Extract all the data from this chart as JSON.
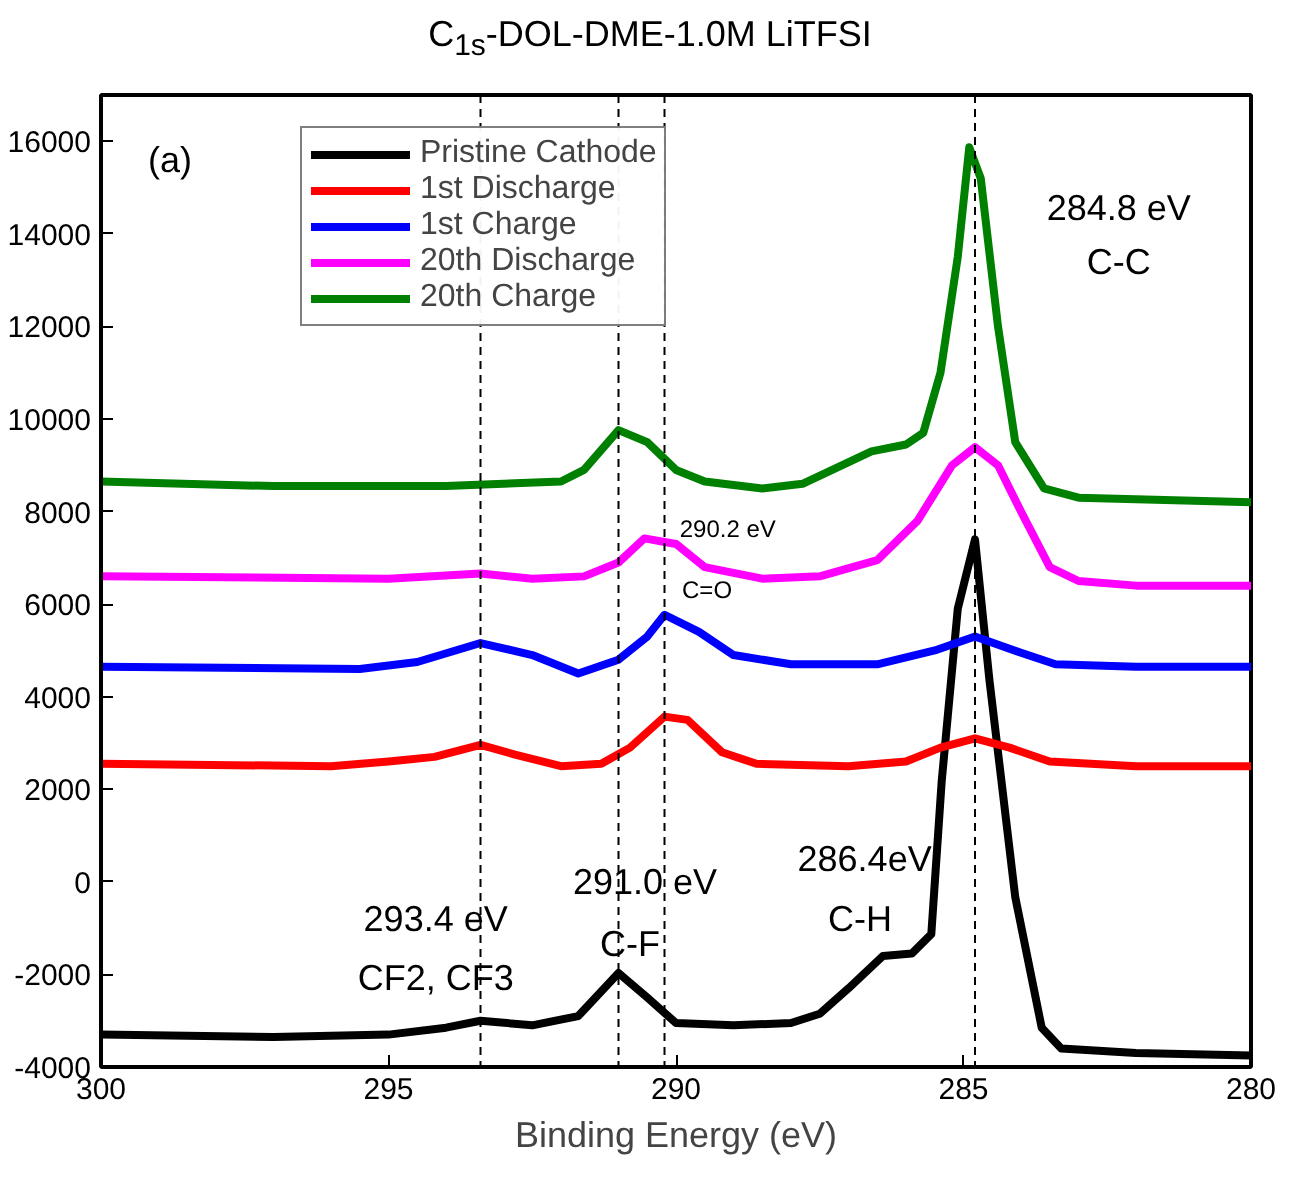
{
  "chart_data": {
    "type": "line",
    "title": "C$_{1s}$-DOL-DME-1.0M LiTFSI",
    "xlabel": "Binding Energy (eV)",
    "xlim": [
      300,
      280
    ],
    "xticks": [
      300,
      295,
      290,
      285,
      280
    ],
    "ylim": [
      -4000,
      17000
    ],
    "yticks": [
      -4000,
      -2000,
      0,
      2000,
      4000,
      6000,
      8000,
      10000,
      12000,
      14000,
      16000
    ],
    "grid": false,
    "legend": "top",
    "marker": "none",
    "line_style": "solid",
    "series": [
      {
        "name": "Pristine Cathode",
        "color": "#000000",
        "x": [
          300,
          297,
          295,
          294,
          293.4,
          292.5,
          291.7,
          291.0,
          290.5,
          290,
          289,
          288,
          287.5,
          287,
          286.4,
          285.9,
          285.56,
          285.38,
          285.1,
          284.8,
          284.55,
          284.1,
          283.64,
          283.3,
          282,
          280
        ],
        "values": [
          -3300,
          -3350,
          -3300,
          -3150,
          -3000,
          -3100,
          -2900,
          -1970,
          -2500,
          -3050,
          -3100,
          -3050,
          -2850,
          -2300,
          -1600,
          -1550,
          -1130,
          2160,
          5900,
          7400,
          4370,
          -330,
          -3150,
          -3600,
          -3700,
          -3750
        ]
      },
      {
        "name": "1st Discharge",
        "color": "#ff0000",
        "x": [
          300,
          296,
          295,
          294.2,
          293.4,
          292.8,
          292,
          291.3,
          290.8,
          290.2,
          289.8,
          289.2,
          288.6,
          287,
          286,
          285.4,
          284.8,
          284.2,
          283.5,
          282,
          280
        ],
        "values": [
          2550,
          2500,
          2600,
          2700,
          2960,
          2750,
          2500,
          2550,
          2900,
          3570,
          3500,
          2800,
          2550,
          2500,
          2600,
          2900,
          3100,
          2900,
          2600,
          2500,
          2500
        ]
      },
      {
        "name": "1st Charge",
        "color": "#0000ff",
        "x": [
          300,
          295.5,
          294.5,
          293.4,
          292.5,
          291.7,
          291.0,
          290.5,
          290.2,
          289.6,
          289,
          288,
          286.5,
          285.5,
          284.8,
          284,
          283.4,
          282,
          280
        ],
        "values": [
          4650,
          4600,
          4750,
          5160,
          4900,
          4500,
          4800,
          5300,
          5770,
          5400,
          4900,
          4700,
          4700,
          5000,
          5300,
          4950,
          4700,
          4650,
          4650
        ]
      },
      {
        "name": "20th Discharge",
        "color": "#ff00ff",
        "x": [
          300,
          295,
          293.4,
          292.5,
          291.6,
          291,
          290.55,
          290,
          289.5,
          288.5,
          287.5,
          286.5,
          285.8,
          285.2,
          284.8,
          284.4,
          284,
          283.5,
          283,
          282,
          280
        ],
        "values": [
          6600,
          6550,
          6660,
          6550,
          6600,
          6900,
          7420,
          7300,
          6800,
          6550,
          6600,
          6950,
          7800,
          9000,
          9390,
          9000,
          8000,
          6800,
          6500,
          6400,
          6400
        ]
      },
      {
        "name": "20th Charge",
        "color": "#008000",
        "x": [
          300,
          297,
          294,
          293,
          292,
          291.6,
          291.0,
          290.5,
          290,
          289.5,
          288.5,
          287.8,
          287.2,
          286.6,
          286,
          285.7,
          285.4,
          285.1,
          284.9,
          284.7,
          284.4,
          284.1,
          283.6,
          283,
          280
        ],
        "values": [
          8650,
          8550,
          8550,
          8600,
          8650,
          8900,
          9760,
          9500,
          8900,
          8650,
          8500,
          8600,
          8950,
          9300,
          9450,
          9700,
          11000,
          13500,
          15870,
          15200,
          12000,
          9500,
          8500,
          8300,
          8200
        ]
      }
    ],
    "ref_lines": [
      {
        "axis": "x",
        "value": 293.4,
        "color": "#000000",
        "line_style": "dashed"
      },
      {
        "axis": "x",
        "value": 291.0,
        "color": "#000000",
        "line_style": "dashed"
      },
      {
        "axis": "x",
        "value": 290.2,
        "color": "#000000",
        "line_style": "dashed"
      },
      {
        "axis": "x",
        "value": 284.8,
        "color": "#000000",
        "line_style": "dashed"
      }
    ],
    "annotations": [
      "(a)",
      "284.8 eV",
      "C-C",
      "290.2 eV",
      "C=O",
      "293.4 eV",
      "CF2, CF3",
      "291.0 eV",
      "C-F",
      "286.4eV",
      "C-H"
    ]
  }
}
